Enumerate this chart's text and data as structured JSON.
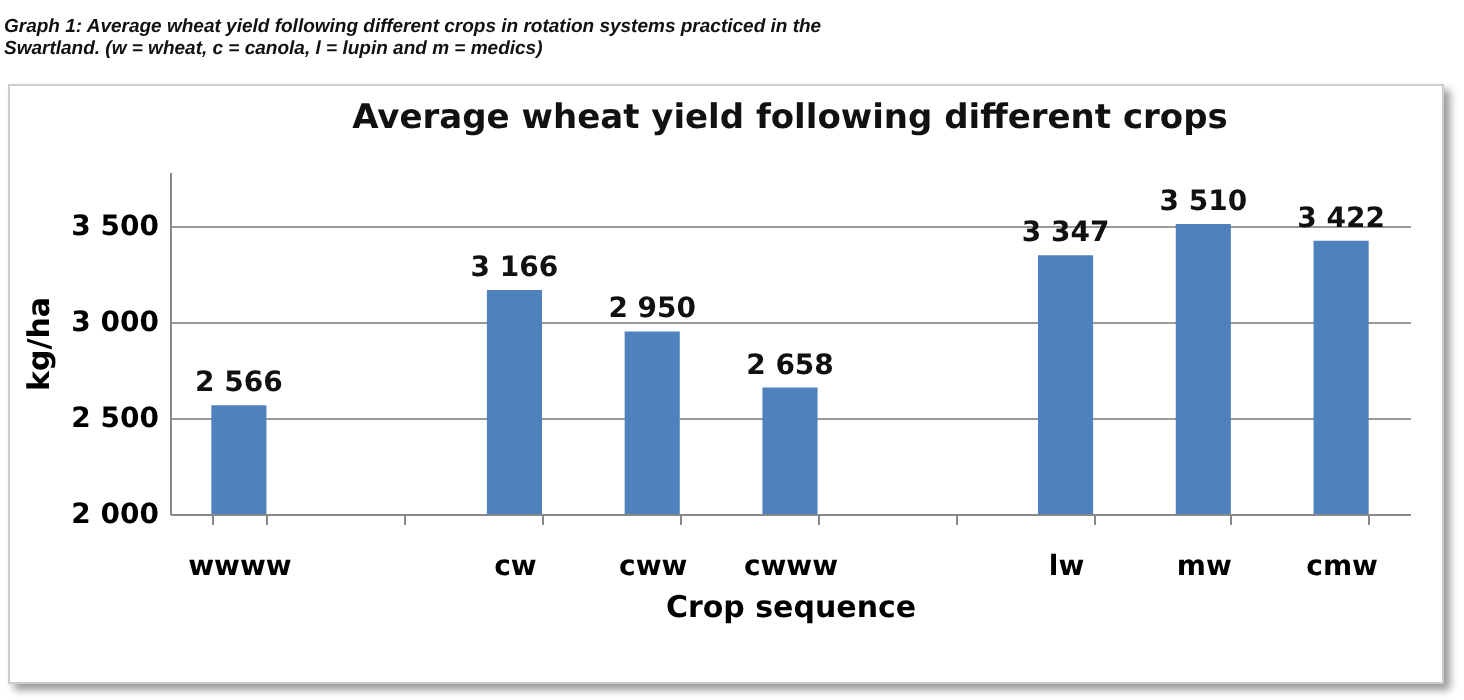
{
  "chart_data": {
    "type": "bar",
    "title": "Average wheat yield following different crops",
    "xlabel": "Crop sequence",
    "ylabel": "kg/ha",
    "annotations": [
      "Graph 1: Average wheat yield following different crops in rotation systems practiced in the Swartland. (w = wheat, c = canola, l = lupin and m = medics)"
    ],
    "categories": [
      "wwww",
      null,
      "cw",
      "cww",
      "cwww",
      null,
      "lw",
      "mw",
      "cmw"
    ],
    "values": [
      2566,
      null,
      3166,
      2950,
      2658,
      null,
      3347,
      3510,
      3422
    ],
    "value_labels": [
      "2 566",
      null,
      "3 166",
      "2 950",
      "2 658",
      null,
      "3 347",
      "3 510",
      "3 422"
    ],
    "color": "#4f81bd",
    "ylim": [
      2000,
      3780
    ],
    "yticks": [
      {
        "value": 2000,
        "label": "2 000"
      },
      {
        "value": 2500,
        "label": "2 500"
      },
      {
        "value": 3000,
        "label": "3 000"
      },
      {
        "value": 3500,
        "label": "3 500"
      }
    ],
    "grid": "y"
  }
}
